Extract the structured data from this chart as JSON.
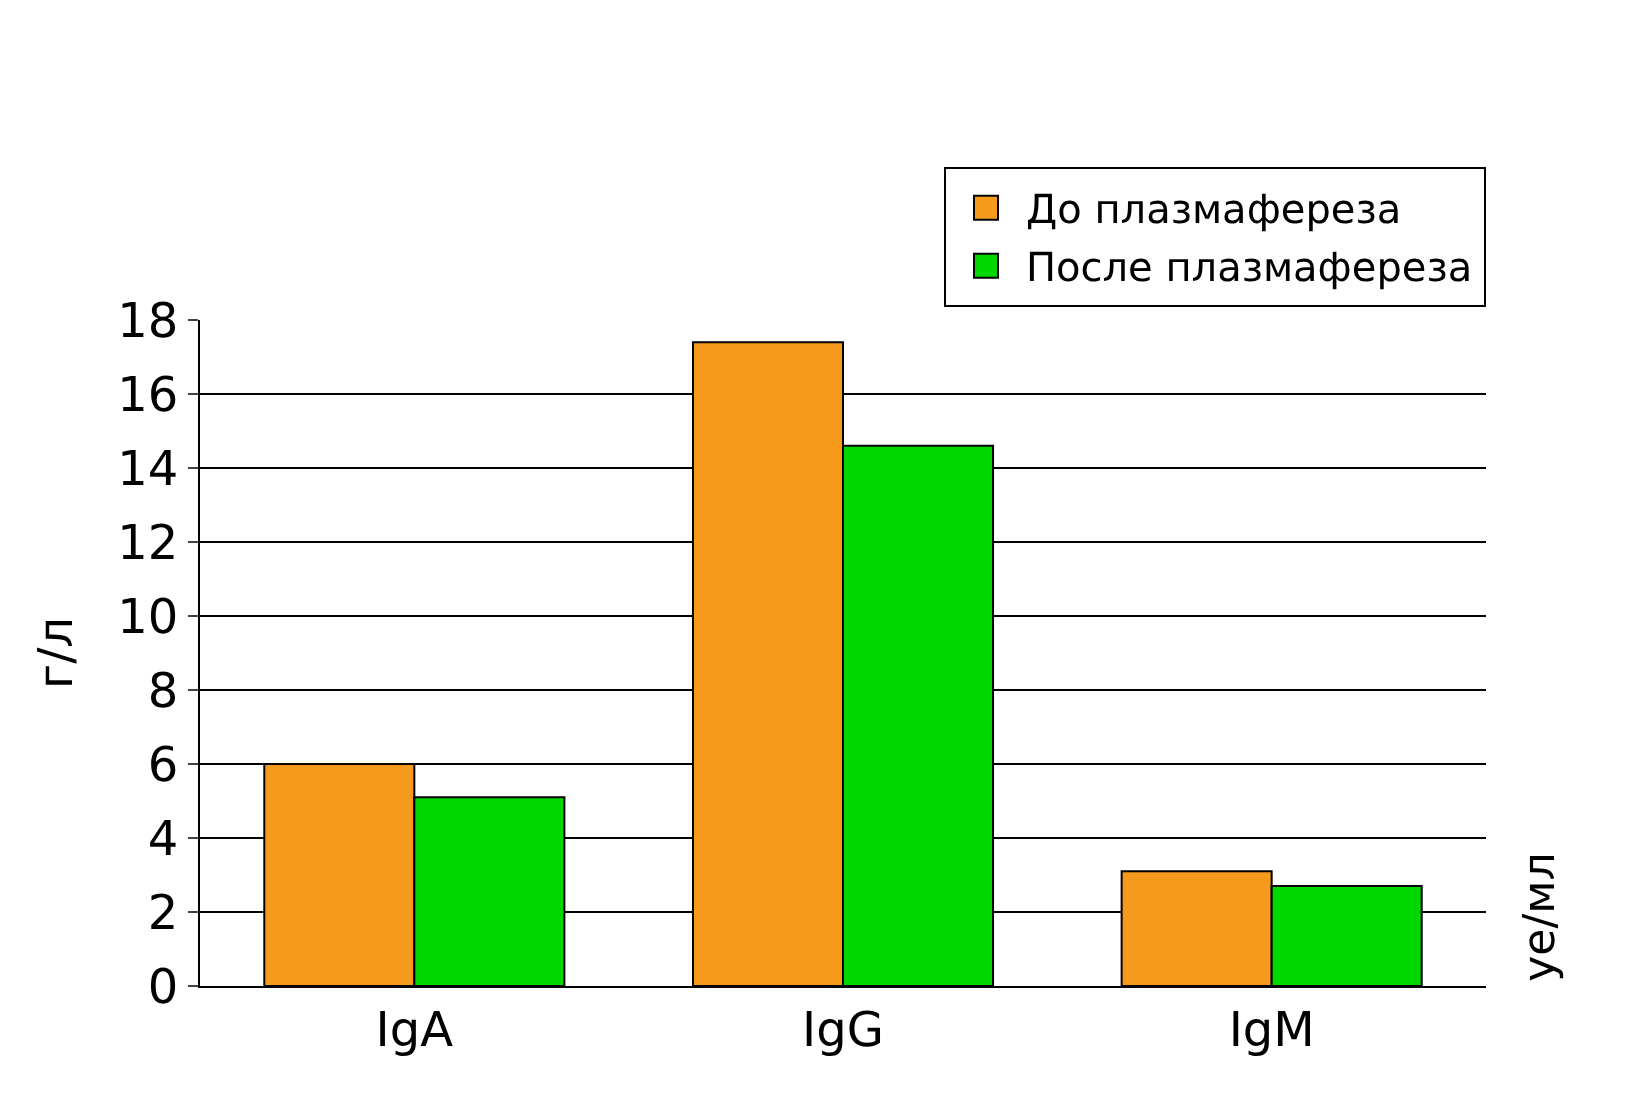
{
  "chart_data": {
    "type": "bar",
    "ylabel": "г/л",
    "categories": [
      "IgA",
      "IgG",
      "IgM"
    ],
    "series": [
      {
        "name": "До плазмафереза",
        "color": "#f59a1c",
        "values": [
          6.0,
          17.4,
          3.1
        ]
      },
      {
        "name": "После плазмафереза",
        "color": "#00d800",
        "values": [
          5.1,
          14.6,
          2.7
        ]
      }
    ],
    "ylim": [
      0,
      18
    ],
    "yticks": [
      0,
      2,
      4,
      6,
      8,
      10,
      12,
      14,
      16,
      18
    ],
    "grid": "y",
    "legend": "top right",
    "annotations": [
      "уе/мл"
    ]
  }
}
